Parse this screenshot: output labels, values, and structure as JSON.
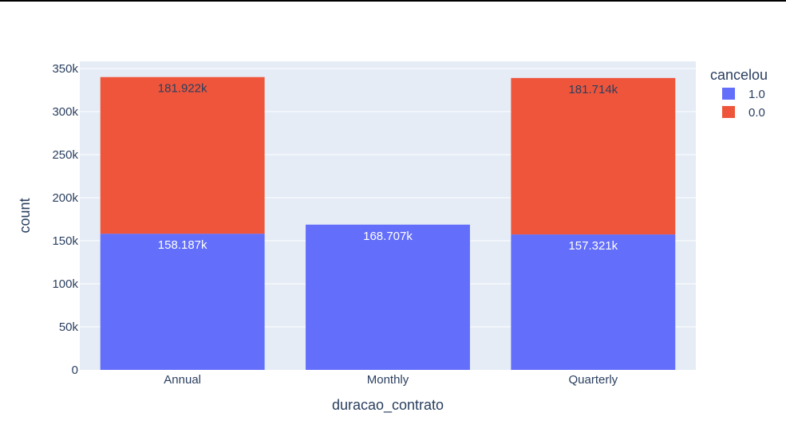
{
  "chart_data": {
    "type": "bar",
    "barmode": "stack",
    "categories": [
      "Annual",
      "Monthly",
      "Quarterly"
    ],
    "series": [
      {
        "name": "1.0",
        "values": [
          158187,
          168707,
          157321
        ],
        "labels": [
          "158.187k",
          "168.707k",
          "157.321k"
        ]
      },
      {
        "name": "0.0",
        "values": [
          181922,
          0,
          181714
        ],
        "labels": [
          "181.922k",
          "",
          "181.714k"
        ]
      }
    ],
    "xlabel": "duracao_contrato",
    "ylabel": "count",
    "ylim": [
      0,
      350000
    ],
    "yticks": [
      0,
      50000,
      100000,
      150000,
      200000,
      250000,
      300000,
      350000
    ],
    "ytick_labels": [
      "0",
      "50k",
      "100k",
      "150k",
      "200k",
      "250k",
      "300k",
      "350k"
    ],
    "legend_title": "cancelou",
    "legend_position": "top-right",
    "grid": true,
    "colors": {
      "1.0": "#636efa",
      "0.0": "#ef553b",
      "plot_bg": "#e5ecf6",
      "grid": "#ffffff",
      "text": "#2a3f5f"
    }
  }
}
